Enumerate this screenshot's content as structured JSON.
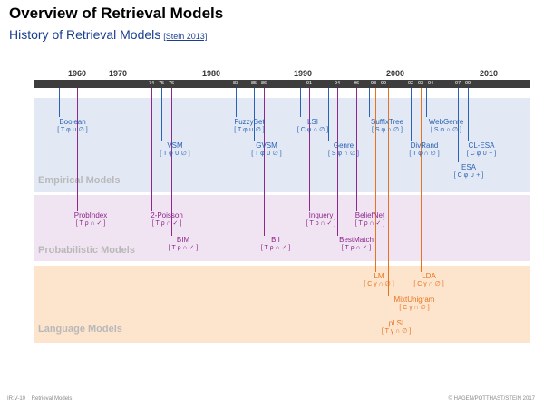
{
  "title": "Overview of Retrieval Models",
  "subtitle": "History of Retrieval Models",
  "subtitle_ref": "[Stein 2013]",
  "decades": [
    "1960",
    "1970",
    "1980",
    "1990",
    "2000",
    "2010"
  ],
  "years": [
    "74",
    "75",
    "76",
    "83",
    "85",
    "86",
    "91",
    "94",
    "96",
    "98",
    "99",
    "02",
    "03",
    "04",
    "07",
    "09"
  ],
  "bands": {
    "empirical": "Empirical Models",
    "probabilistic": "Probabilistic Models",
    "language": "Language Models"
  },
  "colors": {
    "empirical": "#2a62b3",
    "probabilistic": "#8c278c",
    "language": "#e8731c",
    "empirical_bg": "#e2e9f5",
    "probabilistic_bg": "#f1e4f2",
    "language_bg": "#fde4cd",
    "timeline": "#3d3d3d"
  },
  "models": {
    "boolean": {
      "name": "Boolean",
      "code": "[ T φ ∪ ∅ ]"
    },
    "vsm": {
      "name": "VSM",
      "code": "[ T φ ∪ ∅ ]"
    },
    "fuzzyset": {
      "name": "FuzzySet",
      "code": "[ T φ ∪ ∅ ]"
    },
    "gvsm": {
      "name": "GVSM",
      "code": "[ T φ ∪ ∅ ]"
    },
    "lsi": {
      "name": "LSI",
      "code": "[ C φ ∩ ∅ ]"
    },
    "genre": {
      "name": "Genre",
      "code": "[ S φ ∩ ∅ ]"
    },
    "suffixtree": {
      "name": "SuffixTree",
      "code": "[ S φ ∩ ∅ ]"
    },
    "divrand": {
      "name": "DivRand",
      "code": "[ T φ ∩ ∅ ]"
    },
    "webgenre": {
      "name": "WebGenre",
      "code": "[ S φ ∩ ∅ ]"
    },
    "esa": {
      "name": "ESA",
      "code": "[ C φ ∪ + ]"
    },
    "clesa": {
      "name": "CL-ESA",
      "code": "[ C φ ∪ + ]"
    },
    "probindex": {
      "name": "ProbIndex",
      "code": "[ T ρ ∩ ✓ ]"
    },
    "twopoisson": {
      "name": "2-Poisson",
      "code": "[ T ρ ∩ ✓ ]"
    },
    "bim": {
      "name": "BIM",
      "code": "[ T ρ ∩ ✓ ]"
    },
    "bii": {
      "name": "BII",
      "code": "[ T ρ ∩ ✓ ]"
    },
    "inquery": {
      "name": "Inquery",
      "code": "[ T ρ ∩ ✓ ]"
    },
    "bestmatch": {
      "name": "BestMatch",
      "code": "[ T ρ ∩ ✓ ]"
    },
    "beliefnet": {
      "name": "BeliefNet",
      "code": "[ T ρ ∩ ✓ ]"
    },
    "lm": {
      "name": "LM",
      "code": "[ C γ ∩ ∅ ]"
    },
    "lda": {
      "name": "LDA",
      "code": "[ C γ ∩ ∅ ]"
    },
    "mixtunigram": {
      "name": "MixtUnigram",
      "code": "[ C γ ∩ ∅ ]"
    },
    "plsi": {
      "name": "pLSI",
      "code": "[ T γ ∩ ∅ ]"
    }
  },
  "footer": {
    "left": "IR:V-10    Retrieval Models",
    "right": "© HAGEN/POTTHAST/STEIN 2017"
  }
}
